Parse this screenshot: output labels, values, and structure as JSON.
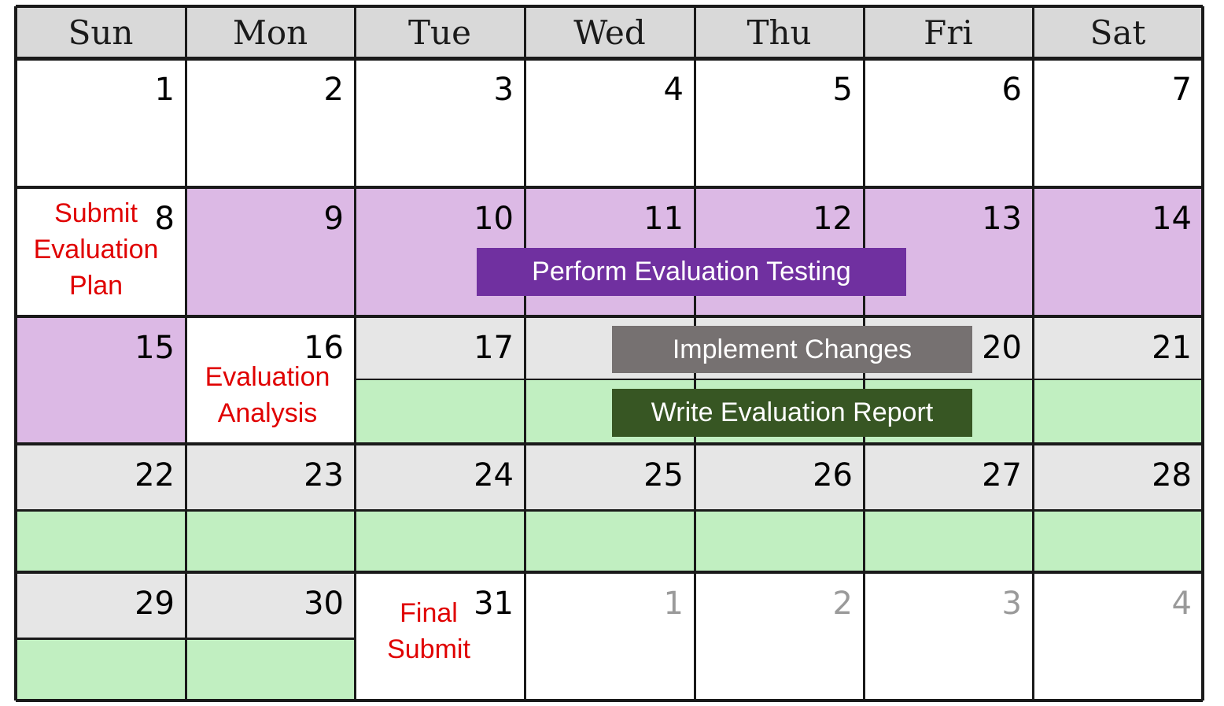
{
  "calendar": {
    "weekdays": [
      "Sun",
      "Mon",
      "Tue",
      "Wed",
      "Thu",
      "Fri",
      "Sat"
    ],
    "weeks": [
      [
        "1",
        "2",
        "3",
        "4",
        "5",
        "6",
        "7"
      ],
      [
        "8",
        "9",
        "10",
        "11",
        "12",
        "13",
        "14"
      ],
      [
        "15",
        "16",
        "17",
        "",
        "",
        "20",
        "21"
      ],
      [
        "22",
        "23",
        "24",
        "25",
        "26",
        "27",
        "28"
      ],
      [
        "29",
        "30",
        "31",
        "1",
        "2",
        "3",
        "4"
      ]
    ],
    "next_month_days": [
      "1",
      "2",
      "3",
      "4"
    ]
  },
  "notes": {
    "submit_plan": "Submit\nEvaluation\nPlan",
    "evaluation_analysis": "Evaluation\nAnalysis",
    "final_submit": "Final\nSubmit"
  },
  "bars": {
    "perform_testing": "Perform Evaluation Testing",
    "implement_changes": "Implement Changes",
    "write_report": "Write Evaluation Report"
  },
  "colors": {
    "testing": "#dcb9e5",
    "report": "#c1efc1",
    "changes": "#e6e6e6",
    "header": "#d9d9d9",
    "note_text": "#e00000",
    "bar_purple": "#7030a0",
    "bar_gray": "#767171",
    "bar_green": "#375623"
  }
}
